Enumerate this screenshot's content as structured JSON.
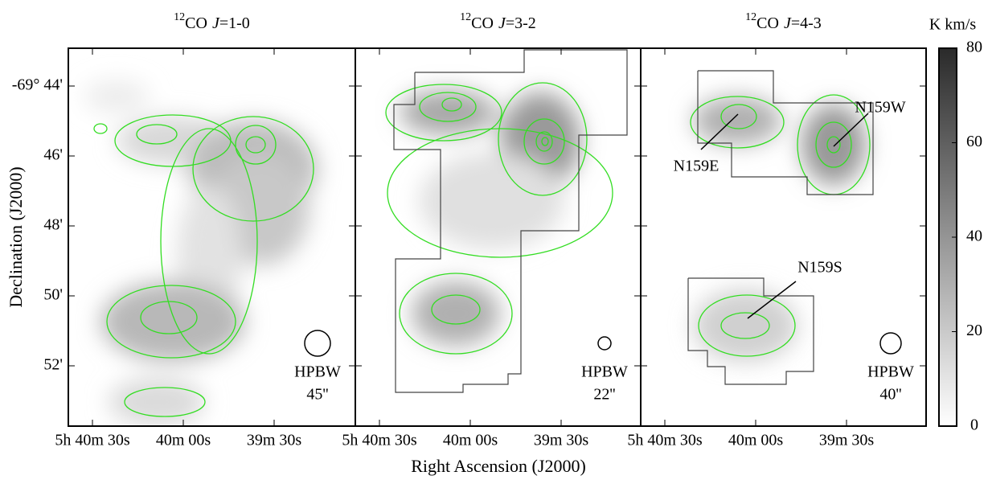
{
  "panels": [
    {
      "title": {
        "isotope": "12",
        "molecule": "CO",
        "symbol": "J",
        "transition": "=1-0"
      },
      "beam": {
        "label": "HPBW",
        "size": "45''"
      }
    },
    {
      "title": {
        "isotope": "12",
        "molecule": "CO",
        "symbol": "J",
        "transition": "=3-2"
      },
      "beam": {
        "label": "HPBW",
        "size": "22''"
      }
    },
    {
      "title": {
        "isotope": "12",
        "molecule": "CO",
        "symbol": "J",
        "transition": "=4-3"
      },
      "beam": {
        "label": "HPBW",
        "size": "40''"
      }
    }
  ],
  "axes": {
    "x_label": "Right Ascension (J2000)",
    "y_label": "Declination (J2000)",
    "ra_ticks": [
      "5h 40m 30s",
      "40m 00s",
      "39m 30s"
    ],
    "dec_ticks": [
      "-69° 44'",
      "46'",
      "48'",
      "50'",
      "52'"
    ]
  },
  "annotations": [
    "N159E",
    "N159W",
    "N159S"
  ],
  "colorbar": {
    "unit": "K km/s",
    "lim": [
      0,
      80
    ],
    "ticks": [
      0,
      20,
      40,
      60,
      80
    ]
  }
}
